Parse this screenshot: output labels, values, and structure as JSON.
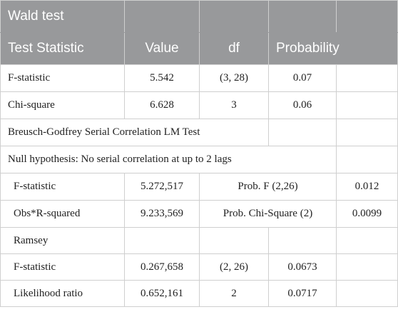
{
  "header": {
    "title": "Wald test",
    "col_test_statistic": "Test Statistic",
    "col_value": "Value",
    "col_df": "df",
    "col_probability": "Probability"
  },
  "wald_rows": [
    {
      "label": "F-statistic",
      "value": "5.542",
      "df": "(3, 28)",
      "prob": "0.07"
    },
    {
      "label": "Chi-square",
      "value": "6.628",
      "df": "3",
      "prob": "0.06"
    }
  ],
  "breusch": {
    "title": "Breusch-Godfrey Serial Correlation LM Test",
    "null_hypothesis": "Null hypothesis: No serial correlation at up to 2 lags",
    "rows": [
      {
        "label": "F-statistic",
        "value": "5.272,517",
        "test": "Prob. F (2,26)",
        "prob": "0.012"
      },
      {
        "label": "Obs*R-squared",
        "value": "9.233,569",
        "test": "Prob. Chi-Square (2)",
        "prob": "0.0099"
      }
    ]
  },
  "ramsey": {
    "title": "Ramsey",
    "rows": [
      {
        "label": "F-statistic",
        "value": "0.267,658",
        "df": "(2, 26)",
        "prob": "0.0673"
      },
      {
        "label": "Likelihood ratio",
        "value": "0.652,161",
        "df": "2",
        "prob": "0.0717"
      }
    ]
  }
}
